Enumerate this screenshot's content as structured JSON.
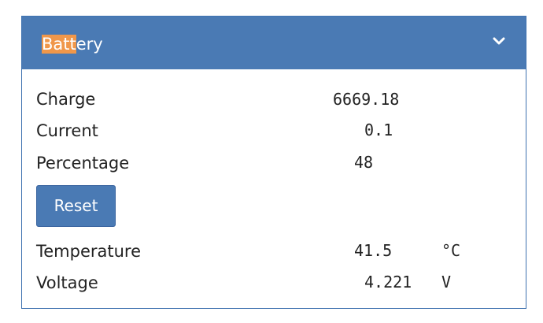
{
  "panel": {
    "title": {
      "highlighted": "Batt",
      "rest": "ery"
    },
    "rows": [
      {
        "label": "Charge",
        "value": "6669.18"
      },
      {
        "label": "Current",
        "value": "0.1"
      },
      {
        "label": "Percentage",
        "value": "48"
      }
    ],
    "button": "Reset",
    "rows_after": [
      {
        "label": "Temperature",
        "value": "41.5",
        "unit": "°C"
      },
      {
        "label": "Voltage",
        "value": "4.221",
        "unit": "V"
      }
    ]
  }
}
